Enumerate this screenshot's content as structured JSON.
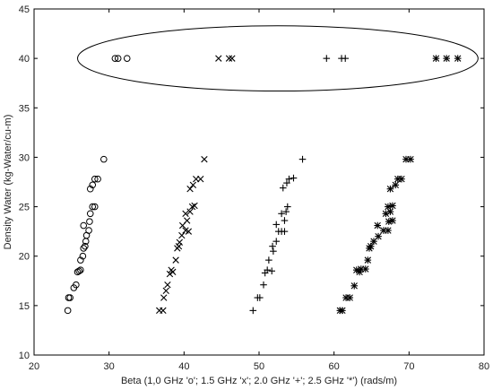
{
  "chart_data": {
    "type": "scatter",
    "xlabel": "Beta (1,0 GHz 'o'; 1.5 GHz 'x'; 2.0 GHz '+'; 2.5 GHz '*') (rads/m)",
    "ylabel": "Density Water (kg-Water/cu-m)",
    "xlim": [
      20,
      80
    ],
    "ylim": [
      10,
      45
    ],
    "x_ticks": [
      20,
      30,
      40,
      50,
      60,
      70,
      80
    ],
    "y_ticks": [
      10,
      15,
      20,
      25,
      30,
      35,
      40,
      45
    ],
    "grid": false,
    "annotation": "ellipse around the points at Density Water = 40",
    "series": [
      {
        "marker": "o",
        "points": [
          [
            24.5,
            14.5
          ],
          [
            24.6,
            15.8
          ],
          [
            24.8,
            15.8
          ],
          [
            25.3,
            16.8
          ],
          [
            25.6,
            17.1
          ],
          [
            25.8,
            18.4
          ],
          [
            26.0,
            18.5
          ],
          [
            26.2,
            18.6
          ],
          [
            26.2,
            19.6
          ],
          [
            26.5,
            20.0
          ],
          [
            26.6,
            20.8
          ],
          [
            26.8,
            21.0
          ],
          [
            26.9,
            21.5
          ],
          [
            27.0,
            22.1
          ],
          [
            27.3,
            22.6
          ],
          [
            26.6,
            23.1
          ],
          [
            27.4,
            23.5
          ],
          [
            27.5,
            24.3
          ],
          [
            27.8,
            25.0
          ],
          [
            28.1,
            25.0
          ],
          [
            27.5,
            26.8
          ],
          [
            27.8,
            27.2
          ],
          [
            28.1,
            27.8
          ],
          [
            28.5,
            27.8
          ],
          [
            29.3,
            29.8
          ],
          [
            30.8,
            40.0
          ],
          [
            31.2,
            40.0
          ],
          [
            32.4,
            40.0
          ]
        ]
      },
      {
        "marker": "x",
        "points": [
          [
            36.7,
            14.5
          ],
          [
            37.2,
            14.5
          ],
          [
            37.3,
            15.8
          ],
          [
            37.6,
            16.5
          ],
          [
            37.8,
            17.1
          ],
          [
            38.1,
            18.2
          ],
          [
            38.3,
            18.6
          ],
          [
            38.5,
            18.4
          ],
          [
            38.9,
            19.6
          ],
          [
            39.1,
            20.8
          ],
          [
            39.3,
            21.0
          ],
          [
            39.4,
            21.4
          ],
          [
            39.7,
            22.1
          ],
          [
            40.2,
            22.6
          ],
          [
            40.6,
            22.5
          ],
          [
            39.8,
            23.1
          ],
          [
            40.4,
            23.6
          ],
          [
            40.2,
            24.3
          ],
          [
            40.8,
            24.5
          ],
          [
            41.1,
            25.0
          ],
          [
            41.4,
            25.1
          ],
          [
            40.8,
            26.8
          ],
          [
            41.2,
            27.2
          ],
          [
            41.6,
            27.8
          ],
          [
            42.2,
            27.8
          ],
          [
            42.7,
            29.8
          ],
          [
            44.6,
            40.0
          ],
          [
            46.0,
            40.0
          ],
          [
            46.4,
            40.0
          ]
        ]
      },
      {
        "marker": "+",
        "points": [
          [
            49.2,
            14.5
          ],
          [
            49.8,
            15.8
          ],
          [
            50.1,
            15.8
          ],
          [
            50.6,
            17.1
          ],
          [
            50.8,
            18.3
          ],
          [
            51.1,
            18.6
          ],
          [
            51.7,
            18.5
          ],
          [
            51.3,
            19.6
          ],
          [
            51.9,
            20.5
          ],
          [
            51.8,
            21.0
          ],
          [
            52.3,
            21.5
          ],
          [
            52.6,
            22.5
          ],
          [
            53.0,
            22.5
          ],
          [
            53.4,
            22.5
          ],
          [
            52.3,
            23.2
          ],
          [
            53.4,
            23.6
          ],
          [
            53.0,
            24.3
          ],
          [
            53.6,
            24.5
          ],
          [
            53.8,
            25.0
          ],
          [
            53.2,
            26.9
          ],
          [
            53.7,
            27.4
          ],
          [
            54.0,
            27.8
          ],
          [
            54.6,
            27.9
          ],
          [
            55.8,
            29.8
          ],
          [
            59.0,
            40.0
          ],
          [
            61.0,
            40.0
          ],
          [
            61.5,
            40.0
          ]
        ]
      },
      {
        "marker": "*",
        "points": [
          [
            60.8,
            14.5
          ],
          [
            61.1,
            14.5
          ],
          [
            61.6,
            15.8
          ],
          [
            62.1,
            15.8
          ],
          [
            62.7,
            17.0
          ],
          [
            63.0,
            18.6
          ],
          [
            63.4,
            18.4
          ],
          [
            63.6,
            18.7
          ],
          [
            64.2,
            18.7
          ],
          [
            64.5,
            19.6
          ],
          [
            64.7,
            20.8
          ],
          [
            64.9,
            21.0
          ],
          [
            65.3,
            21.5
          ],
          [
            65.9,
            22.0
          ],
          [
            66.6,
            22.6
          ],
          [
            67.2,
            22.6
          ],
          [
            65.8,
            23.1
          ],
          [
            67.3,
            23.5
          ],
          [
            67.8,
            23.6
          ],
          [
            66.9,
            24.3
          ],
          [
            67.5,
            24.5
          ],
          [
            67.2,
            25.0
          ],
          [
            67.8,
            25.1
          ],
          [
            67.5,
            26.8
          ],
          [
            68.2,
            27.2
          ],
          [
            68.5,
            27.8
          ],
          [
            69.0,
            27.8
          ],
          [
            69.6,
            29.8
          ],
          [
            70.2,
            29.8
          ],
          [
            73.6,
            40.0
          ],
          [
            75.0,
            40.0
          ],
          [
            76.5,
            40.0
          ]
        ]
      }
    ]
  }
}
